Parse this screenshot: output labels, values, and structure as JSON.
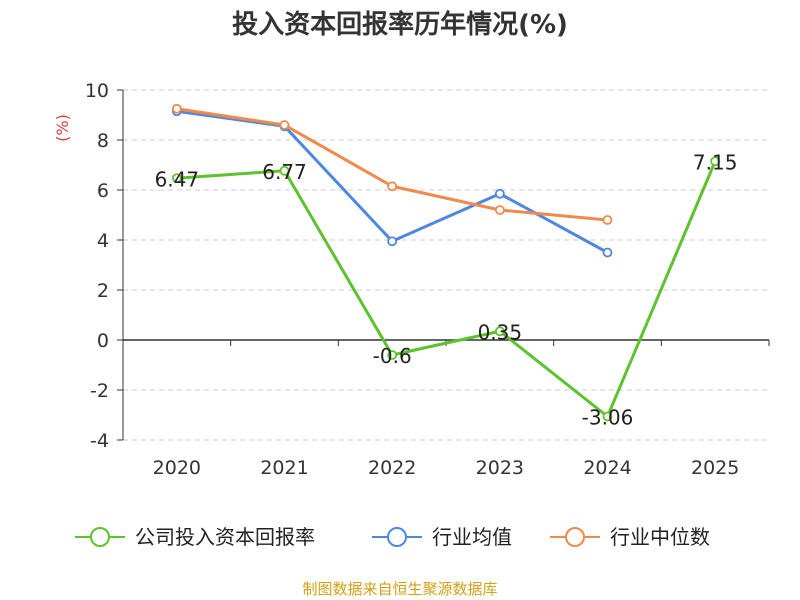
{
  "title": "投入资本回报率历年情况(%)",
  "source": "制图数据来自恒生聚源数据库",
  "colors": {
    "title": "#333333",
    "axis": "#333333",
    "grid": "#cccccc",
    "unit_label": "#e03c3c",
    "source": "#d4a017"
  },
  "chart_data": {
    "type": "line",
    "title": "投入资本回报率历年情况(%)",
    "ylabel": "(%)",
    "xlabel": "",
    "ylim": [
      -4,
      10
    ],
    "yticks": [
      -4,
      -2,
      0,
      2,
      4,
      6,
      8,
      10
    ],
    "ytick_labels": [
      "-4",
      "-2",
      "0",
      "2",
      "4",
      "6",
      "8",
      "10"
    ],
    "categories": [
      "2020",
      "2021",
      "2022",
      "2023",
      "2024",
      "2025"
    ],
    "grid": "horizontal dashed",
    "legend_position": "bottom",
    "series": [
      {
        "name": "公司投入资本回报率",
        "color": "#5cc22e",
        "values": [
          6.47,
          6.77,
          -0.6,
          0.35,
          -3.06,
          7.15
        ],
        "data_labels": [
          "6.47",
          "6.77",
          "-0.6",
          "0.35",
          "-3.06",
          "7.15"
        ]
      },
      {
        "name": "行业均值",
        "color": "#4f86e0",
        "values": [
          9.15,
          8.55,
          3.95,
          5.85,
          3.5,
          null
        ]
      },
      {
        "name": "行业中位数",
        "color": "#f08a4b",
        "values": [
          9.25,
          8.6,
          6.15,
          5.2,
          4.8,
          null
        ]
      }
    ]
  }
}
